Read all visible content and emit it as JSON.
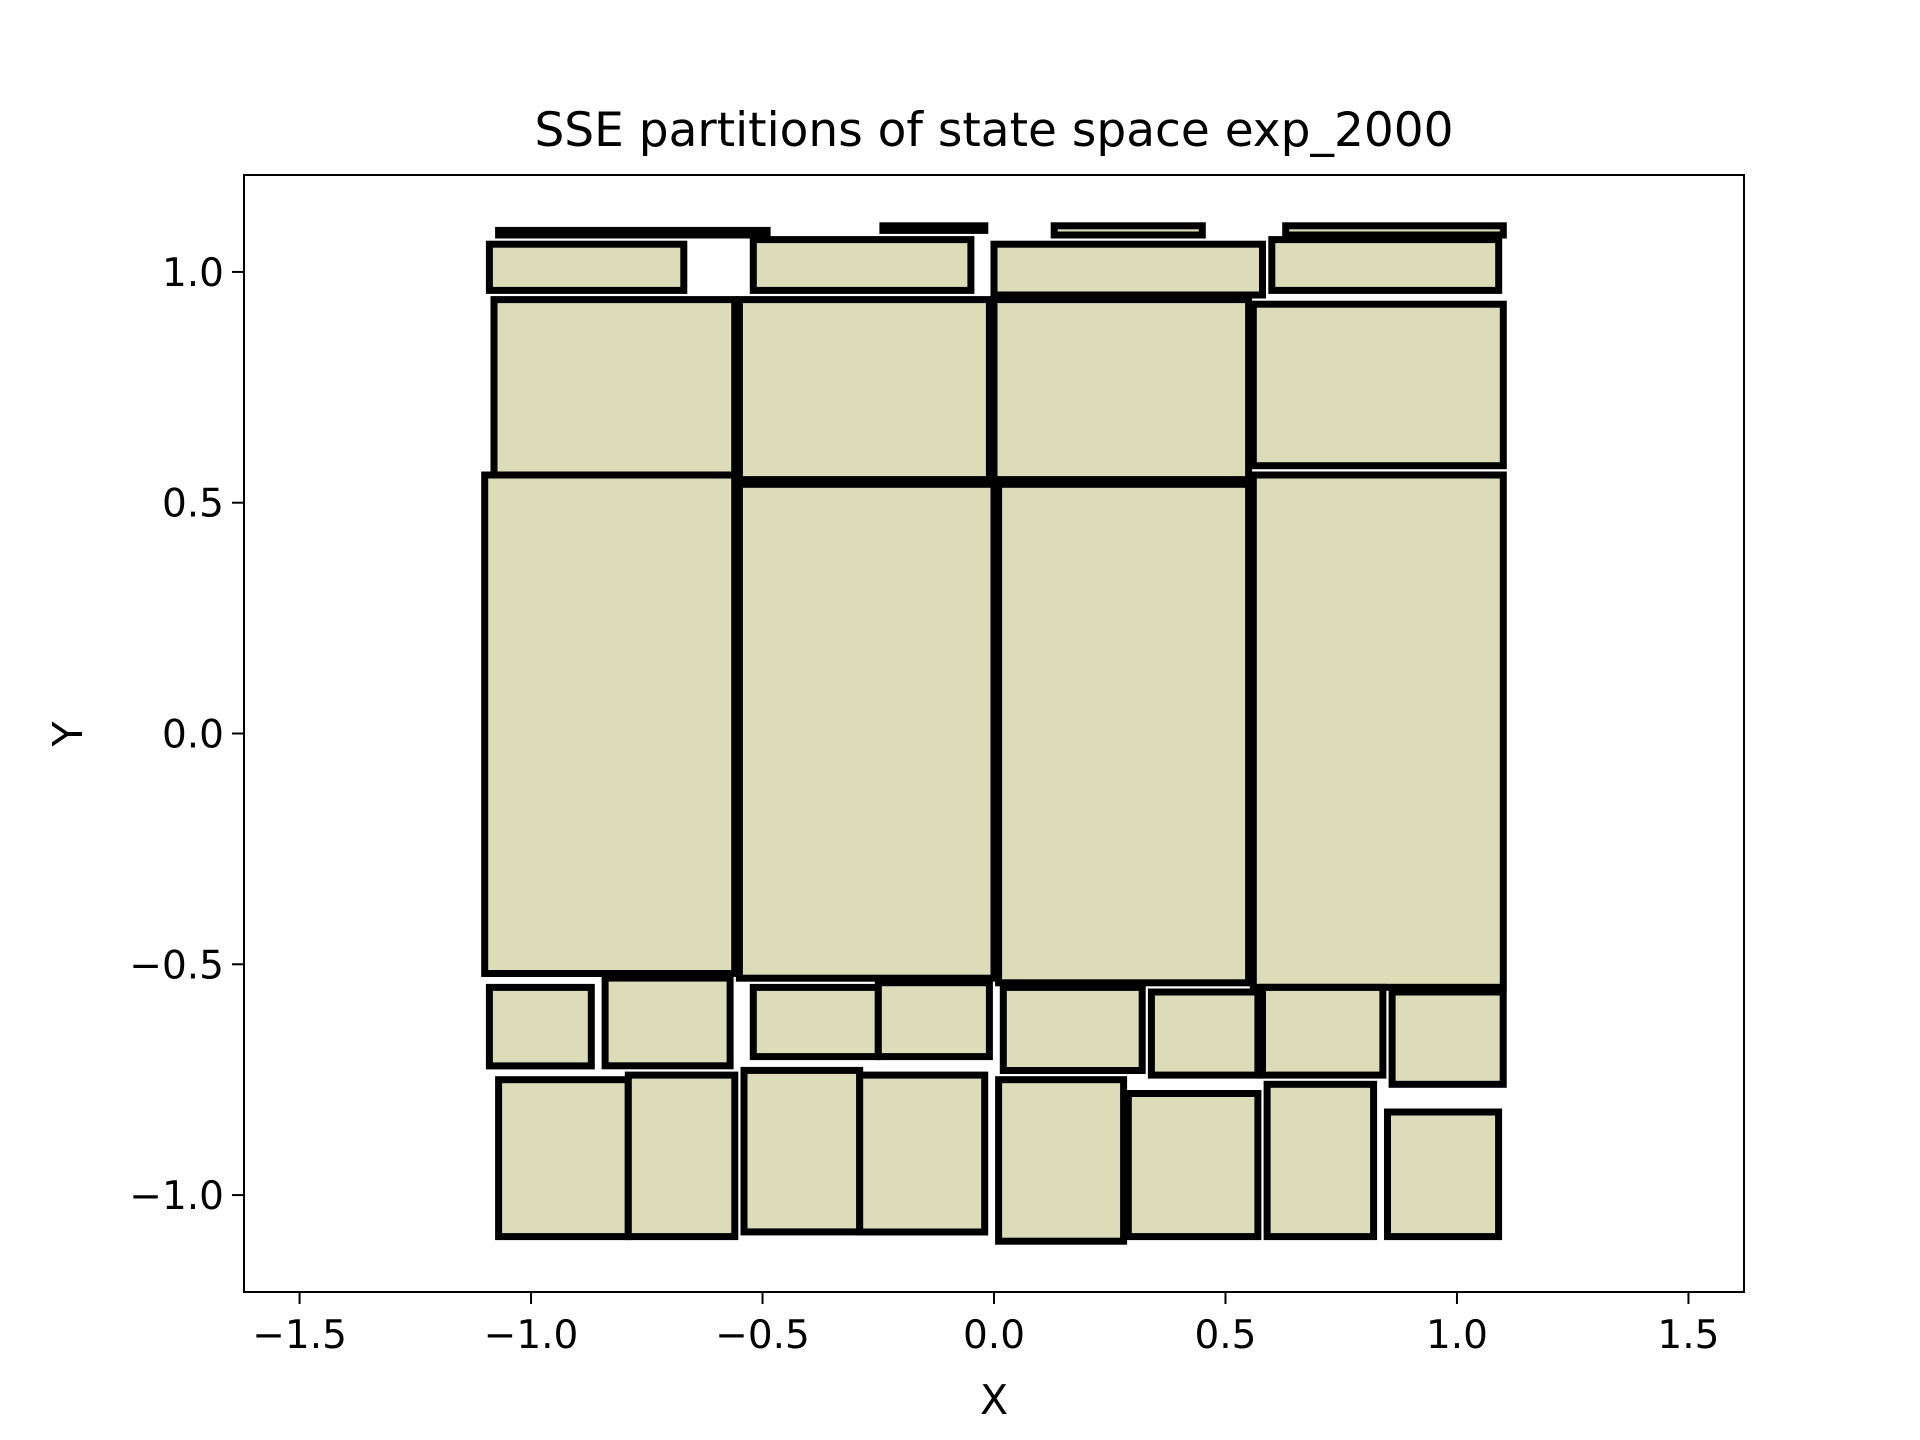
{
  "chart_data": {
    "type": "rectangles",
    "title": "SSE partitions of state space exp_2000",
    "xlabel": "X",
    "ylabel": "Y",
    "xlim": [
      -1.62,
      1.62
    ],
    "ylim": [
      -1.21,
      1.21
    ],
    "xticks": [
      -1.5,
      -1.0,
      -0.5,
      0.0,
      0.5,
      1.0,
      1.5
    ],
    "yticks": [
      -1.0,
      -0.5,
      0.0,
      0.5,
      1.0
    ],
    "xtick_labels": [
      "−1.5",
      "−1.0",
      "−0.5",
      "0.0",
      "0.5",
      "1.0",
      "1.5"
    ],
    "ytick_labels": [
      "−1.0",
      "−0.5",
      "0.0",
      "0.5",
      "1.0"
    ],
    "grid": false,
    "legend": "none",
    "fill_color": "#dcdcb9",
    "edge_color": "#000000",
    "rectangles": [
      {
        "x0": -1.07,
        "x1": -0.49,
        "y0": 1.08,
        "y1": 1.09
      },
      {
        "x0": -0.24,
        "x1": -0.02,
        "y0": 1.09,
        "y1": 1.1
      },
      {
        "x0": 0.13,
        "x1": 0.45,
        "y0": 1.08,
        "y1": 1.1
      },
      {
        "x0": 0.63,
        "x1": 1.1,
        "y0": 1.08,
        "y1": 1.1
      },
      {
        "x0": -1.09,
        "x1": -0.67,
        "y0": 0.96,
        "y1": 1.06
      },
      {
        "x0": -0.52,
        "x1": -0.05,
        "y0": 0.96,
        "y1": 1.07
      },
      {
        "x0": 0.0,
        "x1": 0.58,
        "y0": 0.95,
        "y1": 1.06
      },
      {
        "x0": 0.6,
        "x1": 1.09,
        "y0": 0.96,
        "y1": 1.07
      },
      {
        "x0": -1.08,
        "x1": -0.56,
        "y0": 0.56,
        "y1": 0.94
      },
      {
        "x0": -0.55,
        "x1": -0.01,
        "y0": 0.55,
        "y1": 0.94
      },
      {
        "x0": 0.0,
        "x1": 0.55,
        "y0": 0.55,
        "y1": 0.94
      },
      {
        "x0": 0.56,
        "x1": 1.1,
        "y0": 0.58,
        "y1": 0.93
      },
      {
        "x0": -1.1,
        "x1": -0.56,
        "y0": -0.52,
        "y1": 0.56
      },
      {
        "x0": -0.55,
        "x1": 0.0,
        "y0": -0.53,
        "y1": 0.54
      },
      {
        "x0": 0.01,
        "x1": 0.55,
        "y0": -0.54,
        "y1": 0.54
      },
      {
        "x0": 0.56,
        "x1": 1.1,
        "y0": -0.55,
        "y1": 0.56
      },
      {
        "x0": -1.09,
        "x1": -0.87,
        "y0": -0.72,
        "y1": -0.55
      },
      {
        "x0": -0.84,
        "x1": -0.57,
        "y0": -0.72,
        "y1": -0.53
      },
      {
        "x0": -0.52,
        "x1": -0.25,
        "y0": -0.7,
        "y1": -0.55
      },
      {
        "x0": -0.25,
        "x1": -0.01,
        "y0": -0.7,
        "y1": -0.54
      },
      {
        "x0": 0.02,
        "x1": 0.32,
        "y0": -0.73,
        "y1": -0.55
      },
      {
        "x0": 0.34,
        "x1": 0.57,
        "y0": -0.74,
        "y1": -0.56
      },
      {
        "x0": 0.58,
        "x1": 0.84,
        "y0": -0.74,
        "y1": -0.55
      },
      {
        "x0": 0.86,
        "x1": 1.1,
        "y0": -0.76,
        "y1": -0.56
      },
      {
        "x0": -1.07,
        "x1": -0.79,
        "y0": -1.09,
        "y1": -0.75
      },
      {
        "x0": -0.79,
        "x1": -0.56,
        "y0": -1.09,
        "y1": -0.74
      },
      {
        "x0": -0.54,
        "x1": -0.29,
        "y0": -1.08,
        "y1": -0.73
      },
      {
        "x0": -0.29,
        "x1": -0.02,
        "y0": -1.08,
        "y1": -0.74
      },
      {
        "x0": 0.01,
        "x1": 0.28,
        "y0": -1.1,
        "y1": -0.75
      },
      {
        "x0": 0.29,
        "x1": 0.57,
        "y0": -1.09,
        "y1": -0.78
      },
      {
        "x0": 0.59,
        "x1": 0.82,
        "y0": -1.09,
        "y1": -0.76
      },
      {
        "x0": 0.85,
        "x1": 1.09,
        "y0": -1.09,
        "y1": -0.82
      }
    ]
  }
}
